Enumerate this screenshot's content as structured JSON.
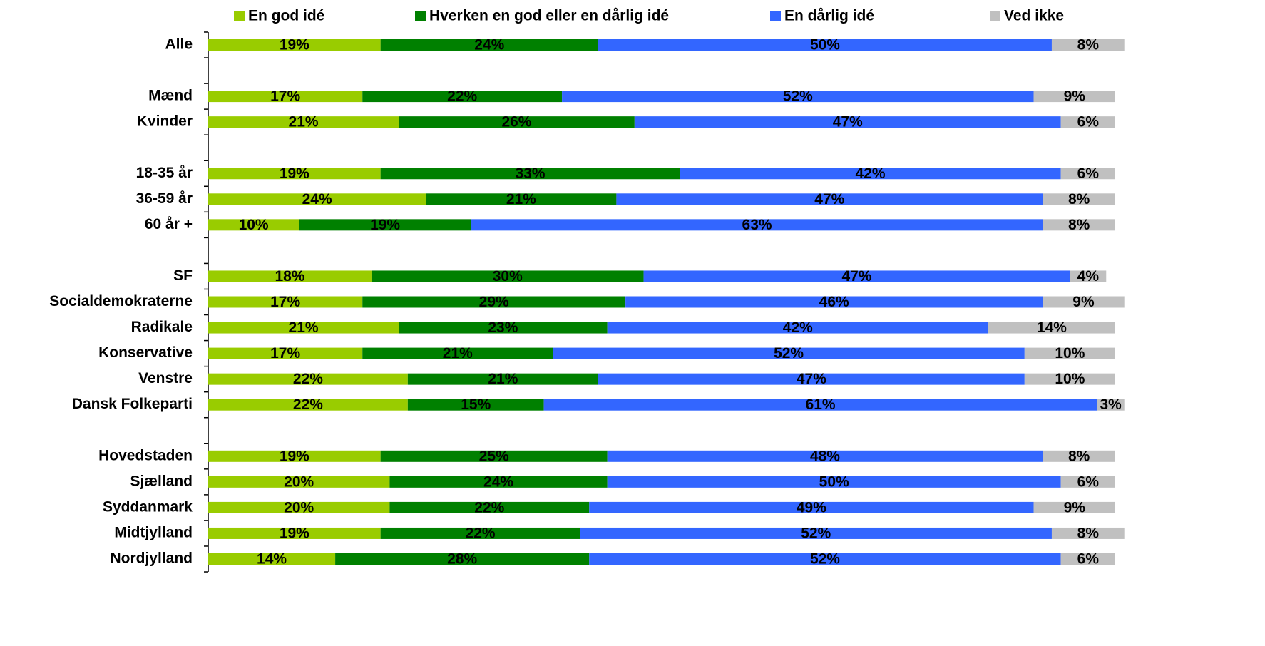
{
  "chart_data": {
    "type": "stacked-bar-horizontal",
    "categories": [
      "Alle",
      null,
      "Mænd",
      "Kvinder",
      null,
      "18-35 år",
      "36-59 år",
      "60 år +",
      null,
      "SF",
      "Socialdemokraterne",
      "Radikale",
      "Konservative",
      "Venstre",
      "Dansk Folkeparti",
      null,
      "Hovedstaden",
      "Sjælland",
      "Syddanmark",
      "Midtjylland",
      "Nordjylland"
    ],
    "xlim": [
      0,
      100
    ],
    "legend": "top",
    "series": [
      {
        "name": "En god idé",
        "color": "#99cc00",
        "values": [
          19,
          null,
          17,
          21,
          null,
          19,
          24,
          10,
          null,
          18,
          17,
          21,
          17,
          22,
          22,
          null,
          19,
          20,
          20,
          19,
          14
        ],
        "value_labels": [
          "19%",
          null,
          "17%",
          "21%",
          null,
          "19%",
          "24%",
          "10%",
          null,
          "18%",
          "17%",
          "21%",
          "17%",
          "22%",
          "22%",
          null,
          "19%",
          "20%",
          "20%",
          "19%",
          "14%"
        ]
      },
      {
        "name": "Hverken en god eller en dårlig idé",
        "color": "#008000",
        "values": [
          24,
          null,
          22,
          26,
          null,
          33,
          21,
          19,
          null,
          30,
          29,
          23,
          21,
          21,
          15,
          null,
          25,
          24,
          22,
          22,
          28
        ],
        "value_labels": [
          "24%",
          null,
          "22%",
          "26%",
          null,
          "33%",
          "21%",
          "19%",
          null,
          "30%",
          "29%",
          "23%",
          "21%",
          "21%",
          "15%",
          null,
          "25%",
          "24%",
          "22%",
          "22%",
          "28%"
        ]
      },
      {
        "name": "En dårlig idé",
        "color": "#3366ff",
        "values": [
          50,
          null,
          52,
          47,
          null,
          42,
          47,
          63,
          null,
          47,
          46,
          42,
          52,
          47,
          61,
          null,
          48,
          50,
          49,
          52,
          52
        ],
        "value_labels": [
          "50%",
          null,
          "52%",
          "47%",
          null,
          "42%",
          "47%",
          "63%",
          null,
          "47%",
          "46%",
          "42%",
          "52%",
          "47%",
          "61%",
          null,
          "48%",
          "50%",
          "49%",
          "52%",
          "52%"
        ]
      },
      {
        "name": "Ved ikke",
        "color": "#c0c0c0",
        "values": [
          8,
          null,
          9,
          6,
          null,
          6,
          8,
          8,
          null,
          4,
          9,
          14,
          10,
          10,
          3,
          null,
          8,
          6,
          9,
          8,
          6
        ],
        "value_labels": [
          "8%",
          null,
          "9%",
          "6%",
          null,
          "6%",
          "8%",
          "8%",
          null,
          "4%",
          "9%",
          "14%",
          "10%",
          "10%",
          "3%",
          null,
          "8%",
          "6%",
          "9%",
          "8%",
          "6%"
        ]
      }
    ]
  }
}
